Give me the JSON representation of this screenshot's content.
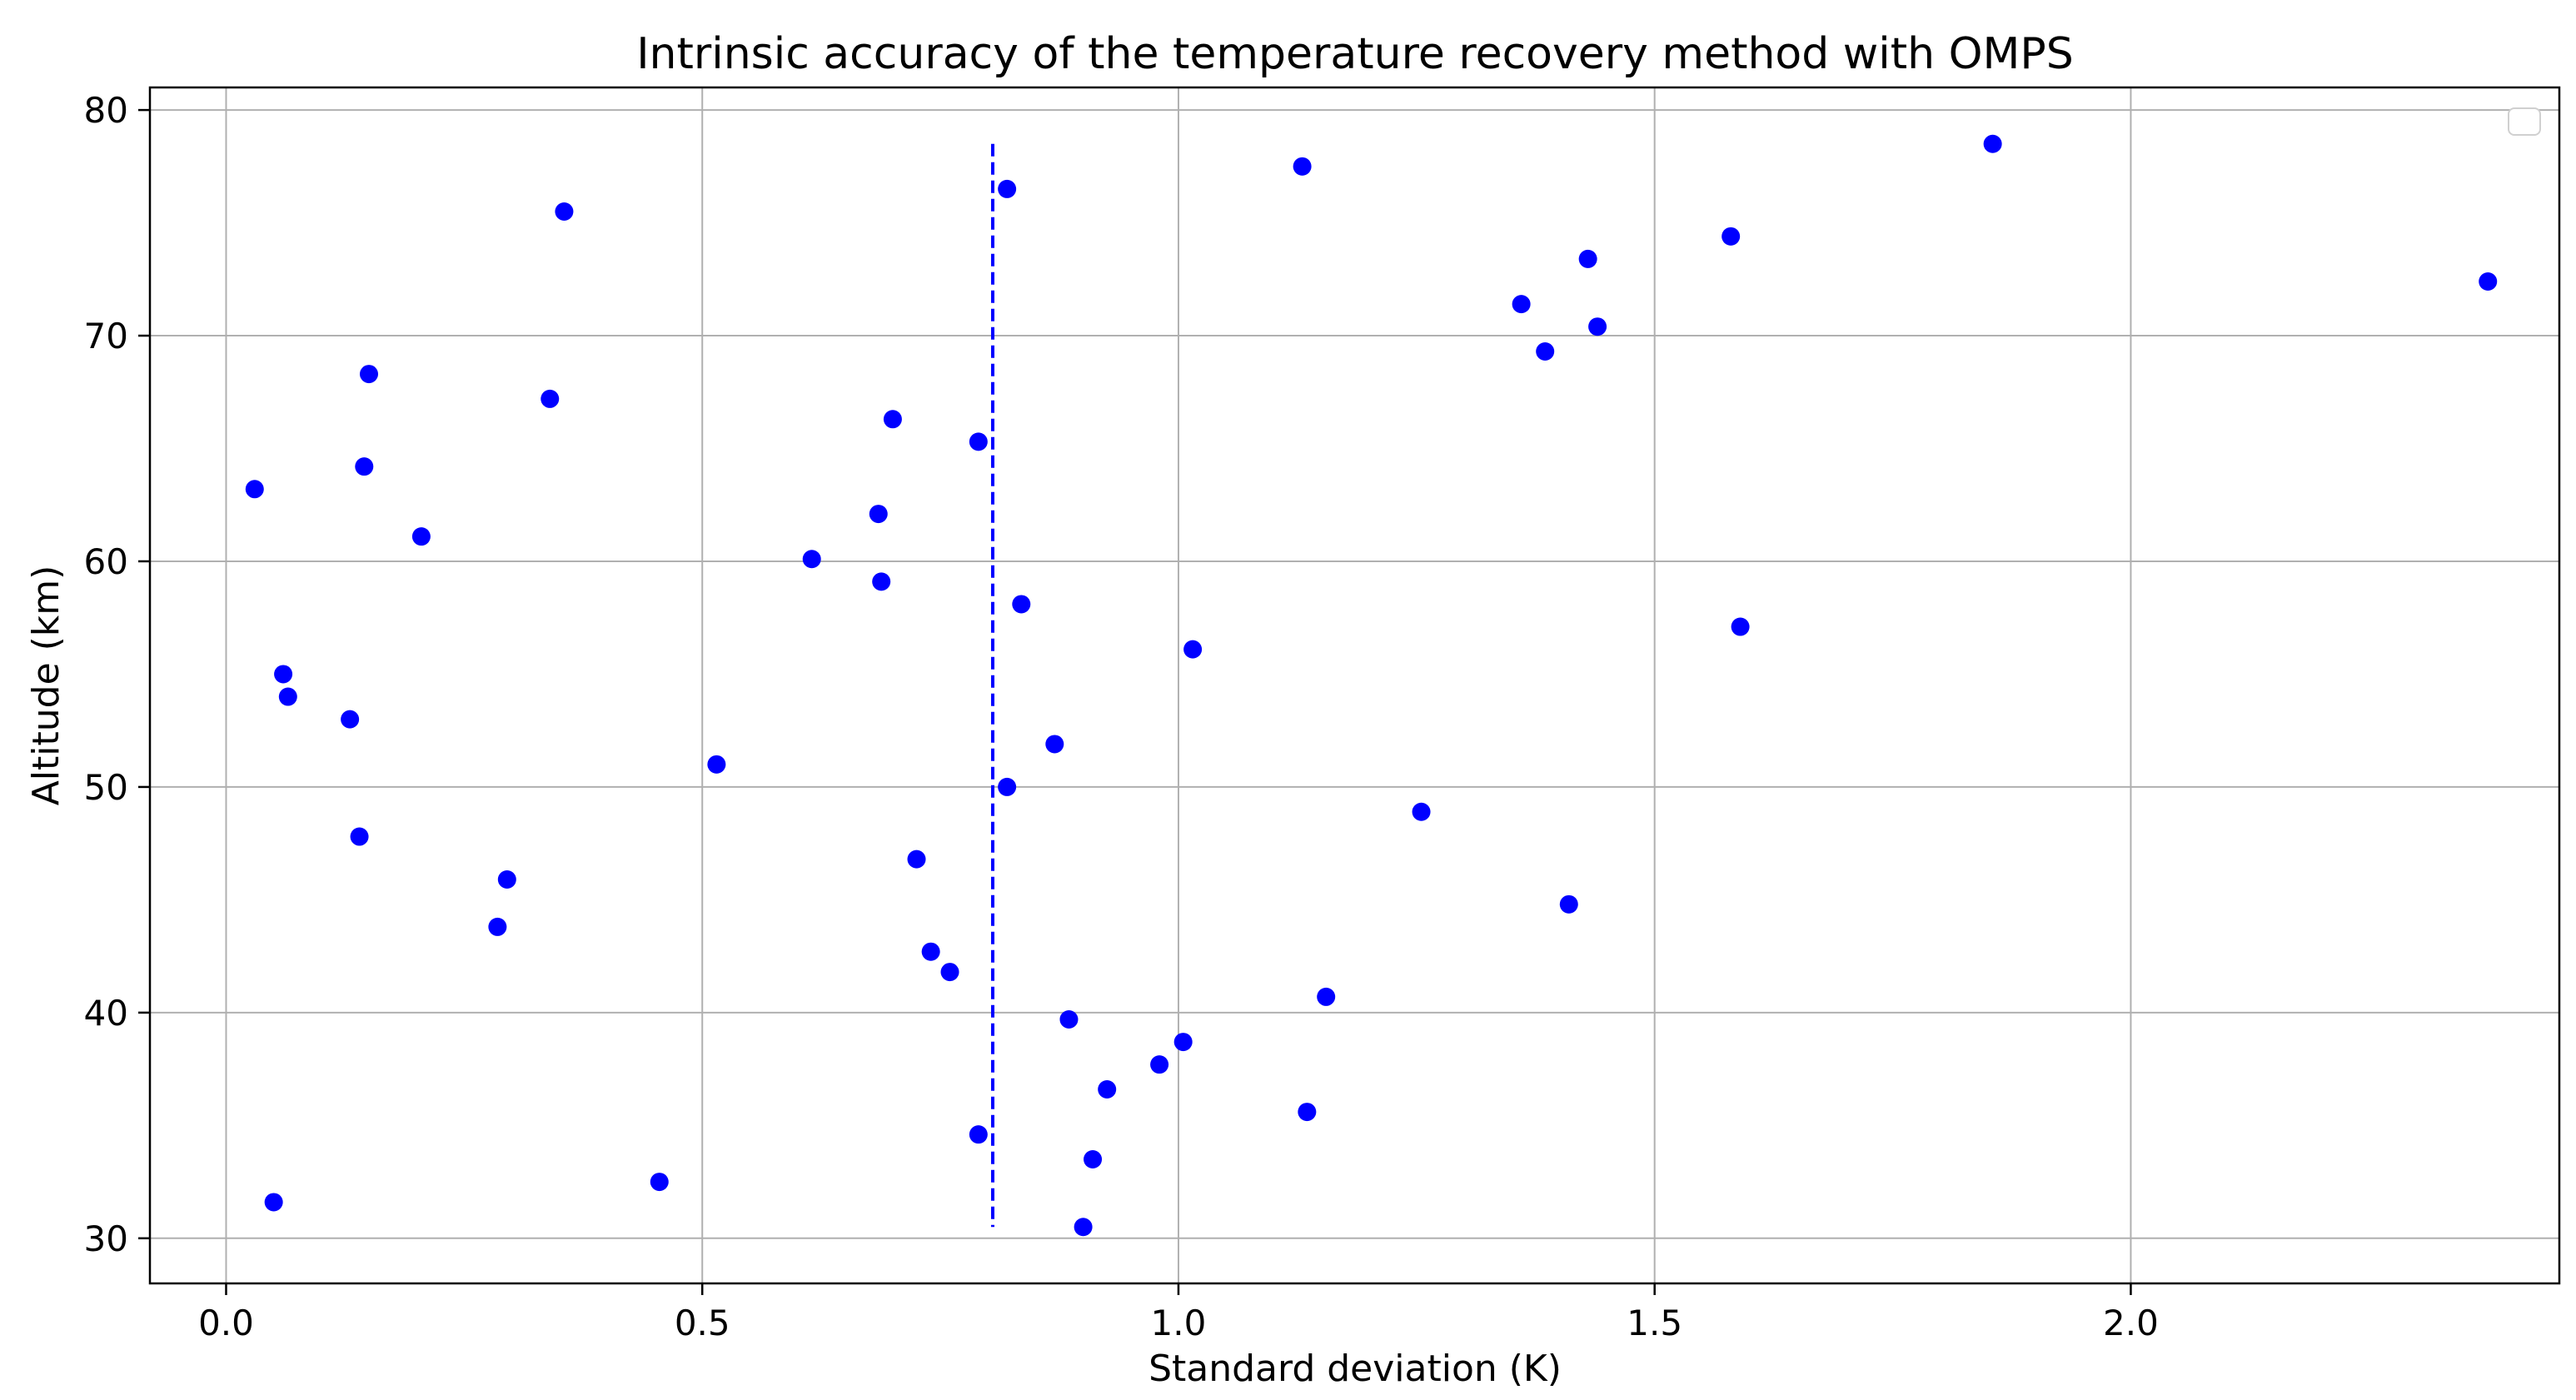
{
  "chart_data": {
    "type": "scatter",
    "title": "Intrinsic accuracy of the temperature recovery method with OMPS",
    "xlabel": "Standard deviation (K)",
    "ylabel": "Altitude (km)",
    "xlim": [
      -0.08,
      2.45
    ],
    "ylim": [
      28,
      81
    ],
    "xticks": [
      0.0,
      0.5,
      1.0,
      1.5,
      2.0
    ],
    "xtick_labels": [
      "0.0",
      "0.5",
      "1.0",
      "1.5",
      "2.0"
    ],
    "yticks": [
      30,
      40,
      50,
      60,
      70,
      80
    ],
    "ytick_labels": [
      "30",
      "40",
      "50",
      "60",
      "70",
      "80"
    ],
    "grid": true,
    "legend": "upper right (empty)",
    "point_color": "#0000ff",
    "reference_line": {
      "style": "dashed",
      "color": "#0000ff",
      "x": 0.805,
      "y_range": [
        30.5,
        78.5
      ]
    },
    "points": [
      {
        "x": 0.03,
        "y": 63.2
      },
      {
        "x": 0.05,
        "y": 31.6
      },
      {
        "x": 0.06,
        "y": 55.0
      },
      {
        "x": 0.065,
        "y": 54.0
      },
      {
        "x": 0.13,
        "y": 53.0
      },
      {
        "x": 0.14,
        "y": 47.8
      },
      {
        "x": 0.145,
        "y": 64.2
      },
      {
        "x": 0.15,
        "y": 68.3
      },
      {
        "x": 0.205,
        "y": 61.1
      },
      {
        "x": 0.285,
        "y": 43.8
      },
      {
        "x": 0.295,
        "y": 45.9
      },
      {
        "x": 0.34,
        "y": 67.2
      },
      {
        "x": 0.355,
        "y": 75.5
      },
      {
        "x": 0.455,
        "y": 32.5
      },
      {
        "x": 0.515,
        "y": 51.0
      },
      {
        "x": 0.615,
        "y": 60.1
      },
      {
        "x": 0.685,
        "y": 62.1
      },
      {
        "x": 0.688,
        "y": 59.1
      },
      {
        "x": 0.7,
        "y": 66.3
      },
      {
        "x": 0.725,
        "y": 46.8
      },
      {
        "x": 0.74,
        "y": 42.7
      },
      {
        "x": 0.76,
        "y": 41.8
      },
      {
        "x": 0.79,
        "y": 65.3
      },
      {
        "x": 0.79,
        "y": 34.6
      },
      {
        "x": 0.82,
        "y": 50.0
      },
      {
        "x": 0.82,
        "y": 76.5
      },
      {
        "x": 0.835,
        "y": 58.1
      },
      {
        "x": 0.87,
        "y": 51.9
      },
      {
        "x": 0.885,
        "y": 39.7
      },
      {
        "x": 0.9,
        "y": 30.5
      },
      {
        "x": 0.91,
        "y": 33.5
      },
      {
        "x": 0.925,
        "y": 36.6
      },
      {
        "x": 0.98,
        "y": 37.7
      },
      {
        "x": 1.005,
        "y": 38.7
      },
      {
        "x": 1.015,
        "y": 56.1
      },
      {
        "x": 1.13,
        "y": 77.5
      },
      {
        "x": 1.135,
        "y": 35.6
      },
      {
        "x": 1.155,
        "y": 40.7
      },
      {
        "x": 1.255,
        "y": 48.9
      },
      {
        "x": 1.36,
        "y": 71.4
      },
      {
        "x": 1.385,
        "y": 69.3
      },
      {
        "x": 1.41,
        "y": 44.8
      },
      {
        "x": 1.43,
        "y": 73.4
      },
      {
        "x": 1.44,
        "y": 70.4
      },
      {
        "x": 1.58,
        "y": 74.4
      },
      {
        "x": 1.59,
        "y": 57.1
      },
      {
        "x": 1.855,
        "y": 78.5
      },
      {
        "x": 2.375,
        "y": 72.4
      }
    ]
  }
}
